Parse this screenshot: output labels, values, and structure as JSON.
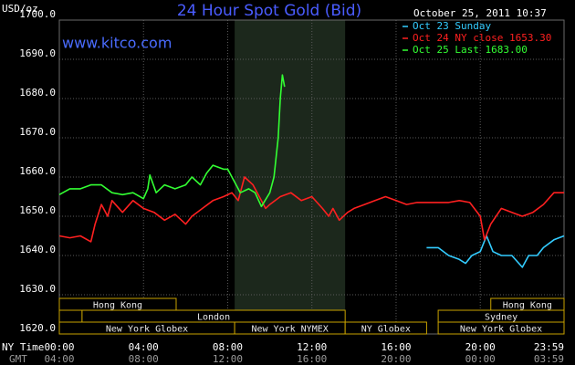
{
  "chart_data": {
    "type": "line",
    "title": "24 Hour Spot Gold (Bid)",
    "timestamp": "October 25, 2011 10:37",
    "watermark": "www.kitco.com",
    "y_unit": "USD/oz",
    "x_label": "NY Time",
    "x2_label": "GMT",
    "xlim": [
      0,
      23.98
    ],
    "ylim": [
      1620,
      1700
    ],
    "grid": true,
    "highlight_range": [
      8.33,
      13.58
    ],
    "xticks": [
      {
        "value": 0,
        "label": "00:00"
      },
      {
        "value": 4,
        "label": "04:00"
      },
      {
        "value": 8,
        "label": "08:00"
      },
      {
        "value": 12,
        "label": "12:00"
      },
      {
        "value": 16,
        "label": "16:00"
      },
      {
        "value": 20,
        "label": "20:00"
      },
      {
        "value": 23.98,
        "label": "23:59"
      }
    ],
    "x2ticks": [
      {
        "value": 0,
        "label": "04:00"
      },
      {
        "value": 4,
        "label": "08:00"
      },
      {
        "value": 8,
        "label": "12:00"
      },
      {
        "value": 12,
        "label": "16:00"
      },
      {
        "value": 16,
        "label": "20:00"
      },
      {
        "value": 20,
        "label": "00:00"
      },
      {
        "value": 23.98,
        "label": "03:59"
      }
    ],
    "yticks": [
      {
        "value": 1620,
        "label": "1620.0"
      },
      {
        "value": 1630,
        "label": "1630.0"
      },
      {
        "value": 1640,
        "label": "1640.0"
      },
      {
        "value": 1650,
        "label": "1650.0"
      },
      {
        "value": 1660,
        "label": "1660.0"
      },
      {
        "value": 1670,
        "label": "1670.0"
      },
      {
        "value": 1680,
        "label": "1680.0"
      },
      {
        "value": 1690,
        "label": "1690.0"
      },
      {
        "value": 1700,
        "label": "1700.0"
      }
    ],
    "series": [
      {
        "name": "Oct 23 Sunday",
        "color": "#33ccff",
        "x": [
          17.45,
          18.0,
          18.5,
          19.0,
          19.3,
          19.6,
          20.0,
          20.3,
          20.6,
          21.0,
          21.5,
          22.0,
          22.3,
          22.7,
          23.0,
          23.5,
          23.98
        ],
        "values": [
          1642,
          1642,
          1640,
          1639,
          1638,
          1640,
          1641,
          1645,
          1641,
          1640,
          1640,
          1637,
          1640,
          1640,
          1642,
          1644,
          1645
        ]
      },
      {
        "name": "Oct 24 NY close 1653.30",
        "color": "#ff2020",
        "x": [
          0,
          0.5,
          1.0,
          1.5,
          1.7,
          2.0,
          2.3,
          2.5,
          3.0,
          3.5,
          4.0,
          4.5,
          5.0,
          5.5,
          6.0,
          6.3,
          6.8,
          7.3,
          7.8,
          8.2,
          8.5,
          8.8,
          9.2,
          9.5,
          9.8,
          10.0,
          10.5,
          11.0,
          11.5,
          12.0,
          12.5,
          12.8,
          13.0,
          13.3,
          13.7,
          14.0,
          14.5,
          15.0,
          15.5,
          16.0,
          16.5,
          17.0,
          17.5,
          18.0,
          18.5,
          19.0,
          19.5,
          20.0,
          20.2,
          20.5,
          21.0,
          21.5,
          22.0,
          22.5,
          23.0,
          23.5,
          23.98
        ],
        "values": [
          1645,
          1644.5,
          1645,
          1643.5,
          1648,
          1653,
          1650,
          1654,
          1651,
          1654,
          1652,
          1651,
          1649,
          1650.5,
          1648,
          1650,
          1652,
          1654,
          1655,
          1656,
          1654,
          1660,
          1658,
          1655,
          1652,
          1653,
          1655,
          1656,
          1654,
          1655,
          1652,
          1650,
          1652,
          1649,
          1651,
          1652,
          1653,
          1654,
          1655,
          1654,
          1653,
          1653.5,
          1653.5,
          1653.5,
          1653.5,
          1654,
          1653.5,
          1650,
          1644,
          1648,
          1652,
          1651,
          1650,
          1651,
          1653,
          1656,
          1656
        ]
      },
      {
        "name": "Oct 25 Last 1683.00",
        "color": "#33ff33",
        "x": [
          0,
          0.5,
          1.0,
          1.5,
          2.0,
          2.5,
          3.0,
          3.5,
          4.0,
          4.2,
          4.3,
          4.6,
          5.0,
          5.5,
          6.0,
          6.3,
          6.7,
          7.0,
          7.3,
          7.8,
          8.0,
          8.3,
          8.6,
          9.0,
          9.3,
          9.6,
          10.0,
          10.2,
          10.4,
          10.5,
          10.6,
          10.7
        ],
        "values": [
          1655.5,
          1657,
          1657,
          1658,
          1658,
          1656,
          1655.5,
          1656,
          1654.5,
          1657,
          1660.5,
          1656,
          1658,
          1657,
          1658,
          1660,
          1658,
          1661,
          1663,
          1662,
          1662,
          1659,
          1656,
          1657,
          1656,
          1652.5,
          1656,
          1660,
          1670,
          1680,
          1686,
          1683
        ]
      }
    ],
    "sessions": [
      {
        "label": "Hong Kong",
        "row": 0,
        "start": 0,
        "end": 5.55
      },
      {
        "label": "Hong Kong",
        "row": 0,
        "start": 20.5,
        "end": 23.98
      },
      {
        "label": null,
        "row": 1,
        "start": 0,
        "end": 1.08
      },
      {
        "label": "London",
        "row": 1,
        "start": 1.08,
        "end": 13.58
      },
      {
        "label": "Sydney",
        "row": 1,
        "start": 18.0,
        "end": 23.98
      },
      {
        "label": "New York Globex",
        "row": 2,
        "start": 0,
        "end": 8.33
      },
      {
        "label": "New York NYMEX",
        "row": 2,
        "start": 8.33,
        "end": 13.58
      },
      {
        "label": "NY Globex",
        "row": 2,
        "start": 13.58,
        "end": 17.45
      },
      {
        "label": "New York Globex",
        "row": 2,
        "start": 18.0,
        "end": 23.98
      }
    ]
  }
}
